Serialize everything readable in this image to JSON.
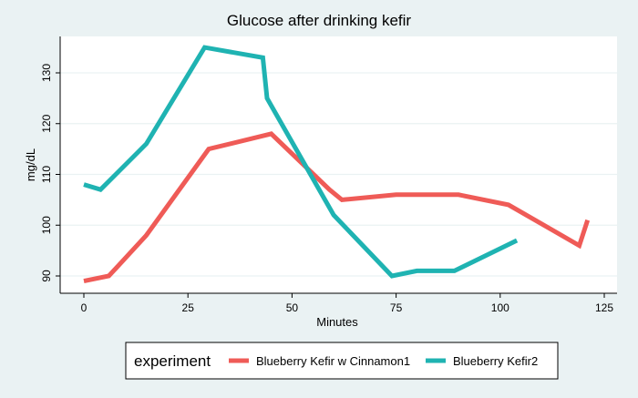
{
  "chart_data": {
    "type": "line",
    "title": "Glucose after drinking kefir",
    "xlabel": "Minutes",
    "ylabel": "mg/dL",
    "xlim": [
      -5,
      127
    ],
    "ylim": [
      88,
      137
    ],
    "x_ticks": [
      0,
      25,
      50,
      75,
      100,
      125
    ],
    "y_ticks": [
      90,
      100,
      110,
      120,
      130
    ],
    "grid": "horizontal",
    "legend": {
      "title": "experiment",
      "position": "bottom-center",
      "entries": [
        "Blueberry Kefir w Cinnamon1",
        "Blueberry Kefir2"
      ]
    },
    "series": [
      {
        "name": "Blueberry Kefir w Cinnamon1",
        "color": "#ef5b57",
        "points": [
          [
            0,
            89
          ],
          [
            6,
            90
          ],
          [
            15,
            98
          ],
          [
            30,
            115
          ],
          [
            45,
            118
          ],
          [
            59,
            107
          ],
          [
            62,
            105
          ],
          [
            75,
            106
          ],
          [
            90,
            106
          ],
          [
            102,
            104
          ],
          [
            119,
            96
          ],
          [
            121,
            101
          ]
        ]
      },
      {
        "name": "Blueberry Kefir2",
        "color": "#1fb3b2",
        "points": [
          [
            0,
            108
          ],
          [
            4,
            107
          ],
          [
            15,
            116
          ],
          [
            29,
            135
          ],
          [
            43,
            133
          ],
          [
            44,
            125
          ],
          [
            60,
            102
          ],
          [
            74,
            90
          ],
          [
            80,
            91
          ],
          [
            89,
            91
          ],
          [
            104,
            97
          ]
        ]
      }
    ]
  }
}
